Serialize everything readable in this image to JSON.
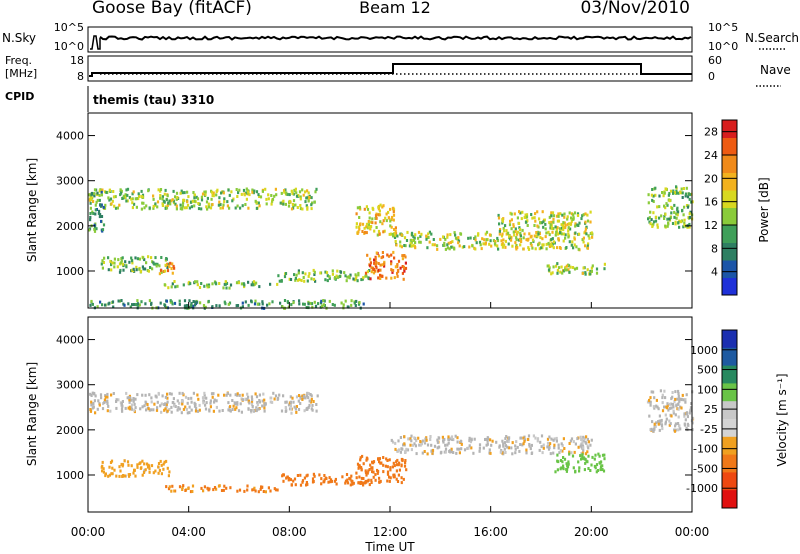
{
  "header": {
    "station": "Goose Bay (fitACF)",
    "beam": "Beam 12",
    "date": "03/Nov/2010"
  },
  "summary_panel": {
    "left_top_label": "N.Sky",
    "left_top_ticks": [
      "10^5",
      "10^0"
    ],
    "right_top_label": "N.Search",
    "right_top_ticks": [
      "10^5",
      "10^0"
    ],
    "left_freq_label_1": "Freq.",
    "left_freq_label_2": "[MHz]",
    "left_freq_ticks": [
      "18",
      "8"
    ],
    "right_nave_label": "Nave",
    "right_nave_ticks": [
      "60",
      "0"
    ],
    "cpid_label": "CPID",
    "cpid_value": "themis (tau) 3310"
  },
  "colors": {
    "power_scale": [
      "#1f31d8",
      "#1b55a8",
      "#2e7f62",
      "#3f9f59",
      "#8acb3a",
      "#d8d820",
      "#f3b21e",
      "#f08a1a",
      "#ee5b12",
      "#d81e1e"
    ],
    "velocity_scale": [
      "#1b2fb0",
      "#1e5aa1",
      "#27895f",
      "#69c447",
      "#c8c8c8",
      "#d4d4d4",
      "#f0a020",
      "#f07818",
      "#ee4810",
      "#e01010"
    ],
    "ground_scatter": "#b4b4b4"
  },
  "chart_data": [
    {
      "type": "heatmap",
      "title": "Power",
      "ylabel": "Slant Range [km]",
      "ylim": [
        180,
        4500
      ],
      "yticks": [
        "1000",
        "2000",
        "3000",
        "4000"
      ],
      "xlim": [
        "00:00",
        "24:00"
      ],
      "colorbar_label": "Power [dB]",
      "colorbar_ticks": [
        "4",
        "8",
        "12",
        "16",
        "20",
        "24",
        "28"
      ],
      "colorbar_range": [
        0,
        30
      ],
      "scatter_regions": [
        {
          "t": [
            0.0,
            9.1
          ],
          "range": [
            2400,
            2850
          ],
          "value": 14
        },
        {
          "t": [
            0.0,
            0.6
          ],
          "range": [
            1900,
            2800
          ],
          "value": 10
        },
        {
          "t": [
            0.5,
            3.2
          ],
          "range": [
            1000,
            1350
          ],
          "value": 12
        },
        {
          "t": [
            2.8,
            3.4
          ],
          "range": [
            950,
            1250
          ],
          "value": 22
        },
        {
          "t": [
            3.0,
            7.5
          ],
          "range": [
            650,
            800
          ],
          "value": 12
        },
        {
          "t": [
            7.5,
            11.2
          ],
          "range": [
            800,
            1050
          ],
          "value": 13
        },
        {
          "t": [
            10.6,
            12.2
          ],
          "range": [
            1800,
            2500
          ],
          "value": 18
        },
        {
          "t": [
            11.0,
            12.6
          ],
          "range": [
            850,
            1450
          ],
          "value": 24
        },
        {
          "t": [
            12.0,
            20.0
          ],
          "range": [
            1500,
            1900
          ],
          "value": 15
        },
        {
          "t": [
            16.2,
            20.0
          ],
          "range": [
            1850,
            2350
          ],
          "value": 15
        },
        {
          "t": [
            18.0,
            20.5
          ],
          "range": [
            950,
            1200
          ],
          "value": 14
        },
        {
          "t": [
            22.2,
            24.0
          ],
          "range": [
            2000,
            2900
          ],
          "value": 13
        },
        {
          "t": [
            0.0,
            11.0
          ],
          "range": [
            200,
            380
          ],
          "value": 10
        }
      ]
    },
    {
      "type": "heatmap",
      "title": "Velocity",
      "ylabel": "Slant Range [km]",
      "ylim": [
        180,
        4500
      ],
      "yticks": [
        "1000",
        "2000",
        "3000",
        "4000"
      ],
      "xticks": [
        "00:00",
        "04:00",
        "08:00",
        "12:00",
        "16:00",
        "20:00",
        "00:00"
      ],
      "xlim": [
        "00:00",
        "24:00"
      ],
      "xlabel": "Time UT",
      "colorbar_label": "Velocity [m s⁻¹]",
      "colorbar_ticks": [
        "1000",
        "500",
        "100",
        "25",
        "-25",
        "-100",
        "-500",
        "-1000"
      ],
      "scatter_regions": [
        {
          "t": [
            0.0,
            9.1
          ],
          "range": [
            2400,
            2850
          ],
          "value": 0
        },
        {
          "t": [
            0.5,
            3.2
          ],
          "range": [
            1000,
            1350
          ],
          "value": -60
        },
        {
          "t": [
            3.0,
            7.5
          ],
          "range": [
            650,
            800
          ],
          "value": -120
        },
        {
          "t": [
            7.5,
            11.2
          ],
          "range": [
            800,
            1050
          ],
          "value": -150
        },
        {
          "t": [
            10.6,
            12.6
          ],
          "range": [
            850,
            1450
          ],
          "value": -250
        },
        {
          "t": [
            12.0,
            20.0
          ],
          "range": [
            1500,
            1900
          ],
          "value": 0
        },
        {
          "t": [
            18.5,
            20.5
          ],
          "range": [
            1100,
            1500
          ],
          "value": 200
        },
        {
          "t": [
            22.2,
            24.0
          ],
          "range": [
            2000,
            2900
          ],
          "value": 0
        }
      ]
    }
  ]
}
